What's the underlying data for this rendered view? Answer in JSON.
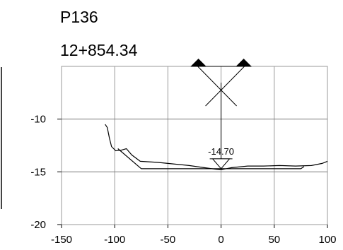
{
  "chart_data": {
    "type": "line",
    "title": "P136",
    "subtitle": "12+854.34",
    "xlim": [
      -150,
      100
    ],
    "ylim": [
      -20,
      -5
    ],
    "xticks": [
      -150,
      -100,
      -50,
      0,
      50,
      100
    ],
    "xtick_labels": [
      "-150",
      "-100",
      "-50",
      "0",
      "50",
      "100"
    ],
    "yticks": [
      -20,
      -15,
      -10
    ],
    "ytick_labels": [
      "-20",
      "-15",
      "-10"
    ],
    "grid": true,
    "centerline_x": 0,
    "elevation_label": "-14.70",
    "elevation_y": -14.7,
    "series": [
      {
        "values": [
          {
            "x": -109,
            "y": -10.5
          },
          {
            "x": -107,
            "y": -10.8
          },
          {
            "x": -105,
            "y": -11.8
          },
          {
            "x": -103,
            "y": -12.6
          },
          {
            "x": -99,
            "y": -13.0
          },
          {
            "x": -94,
            "y": -12.95
          },
          {
            "x": -89,
            "y": -12.8
          },
          {
            "x": -84,
            "y": -13.4
          },
          {
            "x": -76,
            "y": -14.0
          },
          {
            "x": -60,
            "y": -14.1
          },
          {
            "x": -45,
            "y": -14.25
          },
          {
            "x": -30,
            "y": -14.4
          },
          {
            "x": -16,
            "y": -14.6
          },
          {
            "x": -5,
            "y": -14.75
          },
          {
            "x": 0,
            "y": -14.8
          },
          {
            "x": 10,
            "y": -14.6
          },
          {
            "x": 25,
            "y": -14.45
          },
          {
            "x": 40,
            "y": -14.45
          },
          {
            "x": 55,
            "y": -14.4
          },
          {
            "x": 70,
            "y": -14.45
          },
          {
            "x": 85,
            "y": -14.4
          },
          {
            "x": 95,
            "y": -14.2
          },
          {
            "x": 100,
            "y": -14.0
          }
        ]
      },
      {
        "values": [
          {
            "x": -97,
            "y": -12.8
          },
          {
            "x": -75,
            "y": -14.7
          },
          {
            "x": 75,
            "y": -14.7
          },
          {
            "x": 78,
            "y": -14.5
          }
        ]
      }
    ]
  }
}
